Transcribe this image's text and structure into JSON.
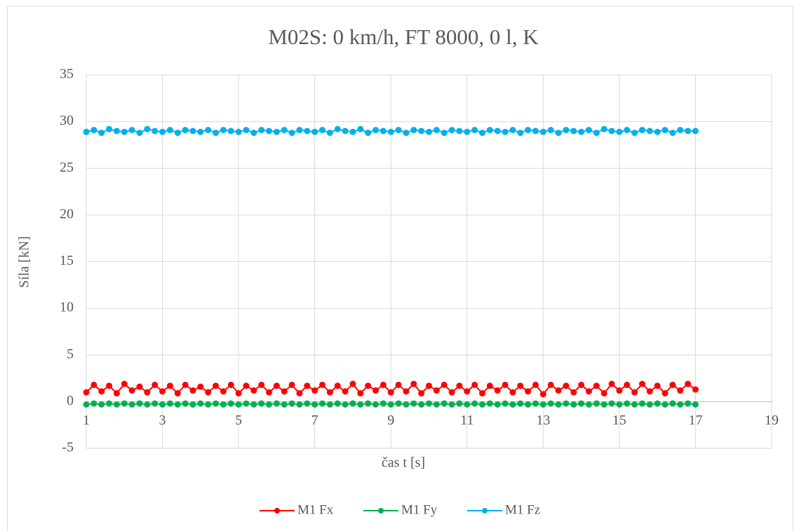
{
  "chart_data": {
    "type": "scatter",
    "title": "M02S: 0 km/h, FT 8000, 0 l, K",
    "x_label": "čas t [s]",
    "y_label": "Síla [kN]",
    "x": [
      1,
      1.2,
      1.4,
      1.6,
      1.8,
      2,
      2.2,
      2.4,
      2.6,
      2.8,
      3,
      3.2,
      3.4,
      3.6,
      3.8,
      4,
      4.2,
      4.4,
      4.6,
      4.8,
      5,
      5.2,
      5.4,
      5.6,
      5.8,
      6,
      6.2,
      6.4,
      6.6,
      6.8,
      7,
      7.2,
      7.4,
      7.6,
      7.8,
      8,
      8.2,
      8.4,
      8.6,
      8.8,
      9,
      9.2,
      9.4,
      9.6,
      9.8,
      10,
      10.2,
      10.4,
      10.6,
      10.8,
      11,
      11.2,
      11.4,
      11.6,
      11.8,
      12,
      12.2,
      12.4,
      12.6,
      12.8,
      13,
      13.2,
      13.4,
      13.6,
      13.8,
      14,
      14.2,
      14.4,
      14.6,
      14.8,
      15,
      15.2,
      15.4,
      15.6,
      15.8,
      16,
      16.2,
      16.4,
      16.6,
      16.8,
      17
    ],
    "series": [
      {
        "name": "M1 Fx",
        "color": "#ff0000",
        "values": [
          1.0,
          1.8,
          1.1,
          1.7,
          0.9,
          1.9,
          1.2,
          1.6,
          1.0,
          1.8,
          1.1,
          1.7,
          0.9,
          1.8,
          1.2,
          1.6,
          1.0,
          1.7,
          1.1,
          1.8,
          0.9,
          1.7,
          1.2,
          1.8,
          1.0,
          1.7,
          1.1,
          1.8,
          0.9,
          1.7,
          1.2,
          1.8,
          1.0,
          1.7,
          1.1,
          1.9,
          0.9,
          1.7,
          1.2,
          1.8,
          1.0,
          1.8,
          1.1,
          1.9,
          0.9,
          1.7,
          1.2,
          1.8,
          1.0,
          1.7,
          1.1,
          1.8,
          0.9,
          1.7,
          1.2,
          1.8,
          1.0,
          1.7,
          1.1,
          1.8,
          0.8,
          1.8,
          1.2,
          1.7,
          1.0,
          1.8,
          1.1,
          1.7,
          0.9,
          1.9,
          1.2,
          1.8,
          1.0,
          1.9,
          1.1,
          1.7,
          0.9,
          1.8,
          1.2,
          1.9,
          1.3
        ]
      },
      {
        "name": "M1 Fy",
        "color": "#00b050",
        "values": [
          -0.3,
          -0.2,
          -0.3,
          -0.2,
          -0.3,
          -0.2,
          -0.3,
          -0.2,
          -0.3,
          -0.2,
          -0.3,
          -0.2,
          -0.3,
          -0.2,
          -0.3,
          -0.2,
          -0.3,
          -0.2,
          -0.3,
          -0.2,
          -0.3,
          -0.2,
          -0.3,
          -0.2,
          -0.3,
          -0.2,
          -0.3,
          -0.2,
          -0.3,
          -0.2,
          -0.3,
          -0.2,
          -0.3,
          -0.2,
          -0.3,
          -0.2,
          -0.3,
          -0.2,
          -0.3,
          -0.2,
          -0.3,
          -0.2,
          -0.3,
          -0.2,
          -0.3,
          -0.2,
          -0.3,
          -0.2,
          -0.3,
          -0.2,
          -0.3,
          -0.2,
          -0.3,
          -0.2,
          -0.3,
          -0.2,
          -0.3,
          -0.2,
          -0.3,
          -0.2,
          -0.3,
          -0.2,
          -0.3,
          -0.2,
          -0.3,
          -0.2,
          -0.3,
          -0.2,
          -0.3,
          -0.2,
          -0.3,
          -0.2,
          -0.3,
          -0.2,
          -0.3,
          -0.2,
          -0.3,
          -0.2,
          -0.3,
          -0.2,
          -0.3
        ]
      },
      {
        "name": "M1 Fz",
        "color": "#00b0f0",
        "values": [
          28.9,
          29.1,
          28.8,
          29.2,
          29.0,
          28.9,
          29.1,
          28.8,
          29.2,
          29.0,
          28.9,
          29.1,
          28.8,
          29.1,
          29.0,
          28.9,
          29.1,
          28.8,
          29.1,
          29.0,
          28.9,
          29.1,
          28.8,
          29.1,
          29.0,
          28.9,
          29.1,
          28.8,
          29.1,
          29.0,
          28.9,
          29.1,
          28.8,
          29.2,
          29.0,
          28.9,
          29.2,
          28.8,
          29.1,
          29.0,
          28.9,
          29.1,
          28.8,
          29.1,
          29.0,
          28.9,
          29.1,
          28.8,
          29.1,
          29.0,
          28.9,
          29.1,
          28.8,
          29.1,
          29.0,
          28.9,
          29.1,
          28.8,
          29.1,
          29.0,
          28.9,
          29.1,
          28.8,
          29.1,
          29.0,
          28.9,
          29.1,
          28.8,
          29.2,
          29.0,
          28.9,
          29.1,
          28.8,
          29.1,
          29.0,
          28.9,
          29.1,
          28.8,
          29.1,
          29.0,
          29.0
        ]
      }
    ],
    "xlim": [
      1,
      19
    ],
    "xticks": [
      1,
      3,
      5,
      7,
      9,
      11,
      13,
      15,
      17,
      19
    ],
    "ylim": [
      -5,
      35
    ],
    "yticks": [
      -5,
      0,
      5,
      10,
      15,
      20,
      25,
      30,
      35
    ],
    "grid": true,
    "legend": "bottom"
  }
}
